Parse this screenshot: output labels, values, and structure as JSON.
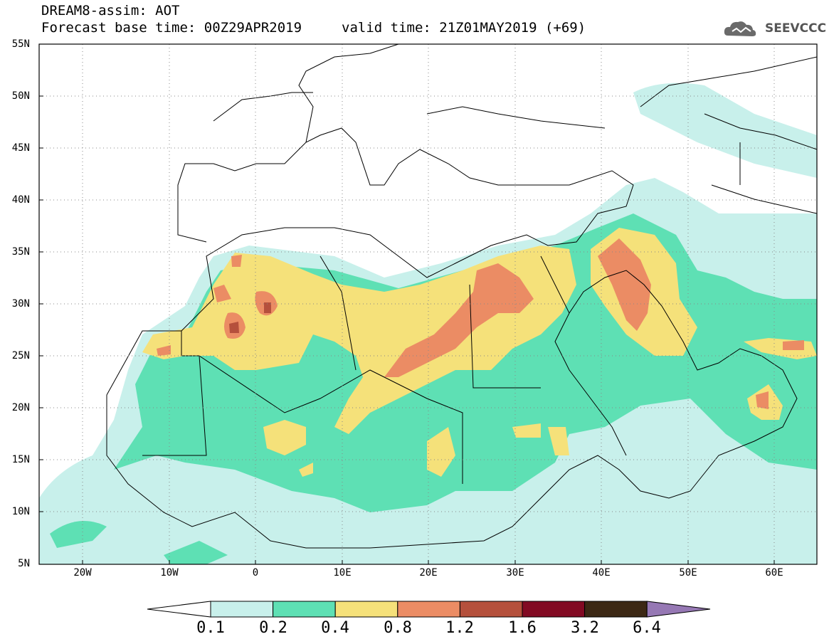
{
  "header": {
    "title": "DREAM8-assim: AOT",
    "base_time": "Forecast base time: 00Z29APR2019",
    "valid_time": "valid time: 21Z01MAY2019 (+69)"
  },
  "logo": {
    "text": "SEEVCCC",
    "icon": "cloud-icon"
  },
  "map": {
    "lat_labels": [
      "55N",
      "50N",
      "45N",
      "40N",
      "35N",
      "30N",
      "25N",
      "20N",
      "15N",
      "10N",
      "5N"
    ],
    "lon_labels": [
      "20W",
      "10W",
      "0",
      "10E",
      "20E",
      "30E",
      "40E",
      "50E",
      "60E"
    ],
    "lat_range": [
      5,
      55
    ],
    "lon_range": [
      -25,
      65
    ],
    "grid": true
  },
  "colorbar": {
    "labels": [
      "0.1",
      "0.2",
      "0.4",
      "0.8",
      "1.2",
      "1.6",
      "3.2",
      "6.4"
    ],
    "colors": [
      "#c8f0eb",
      "#5ee0b4",
      "#f5e17a",
      "#eb8c64",
      "#b5503c",
      "#820a23",
      "#3c2814",
      "#9678b4"
    ],
    "below_color": "#ffffff"
  },
  "palette": {
    "c1": "#c8f0eb",
    "c2": "#5ee0b4",
    "c3": "#f5e17a",
    "c4": "#eb8c64",
    "c5": "#b5503c"
  }
}
